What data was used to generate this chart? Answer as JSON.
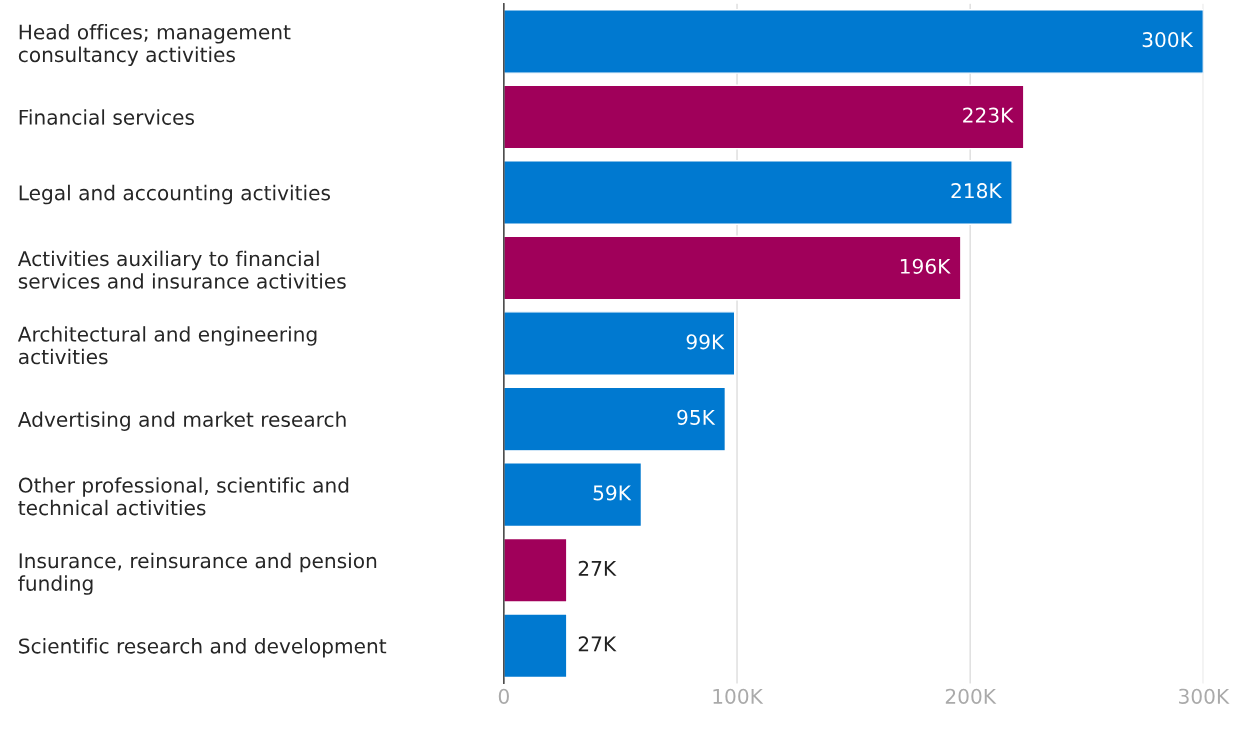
{
  "chart_data": {
    "type": "bar",
    "orientation": "horizontal",
    "categories": [
      "Head offices; management\nconsultancy activities",
      "Financial services",
      "Legal and accounting activities",
      "Activities auxiliary to financial\nservices and insurance activities",
      "Architectural and engineering\nactivities",
      "Advertising and market research",
      "Other professional, scientific and\ntechnical activities",
      "Insurance, reinsurance and pension\nfunding",
      "Scientific research and development"
    ],
    "values": [
      300000,
      223000,
      218000,
      196000,
      99000,
      95000,
      59000,
      27000,
      27000
    ],
    "colors": [
      "#0079d0",
      "#a0005a",
      "#0079d0",
      "#a0005a",
      "#0079d0",
      "#0079d0",
      "#0079d0",
      "#a0005a",
      "#0079d0"
    ],
    "value_labels": [
      "300K",
      "223K",
      "218K",
      "196K",
      "99K",
      "95K",
      "59K",
      "27K",
      "27K"
    ],
    "xlim": [
      0,
      300000
    ],
    "xticks": [
      0,
      {
        "value": 100000,
        "label": "100K"
      },
      {
        "value": 200000,
        "label": "200K"
      },
      {
        "value": 300000,
        "label": "300K"
      }
    ],
    "grid": "x"
  }
}
